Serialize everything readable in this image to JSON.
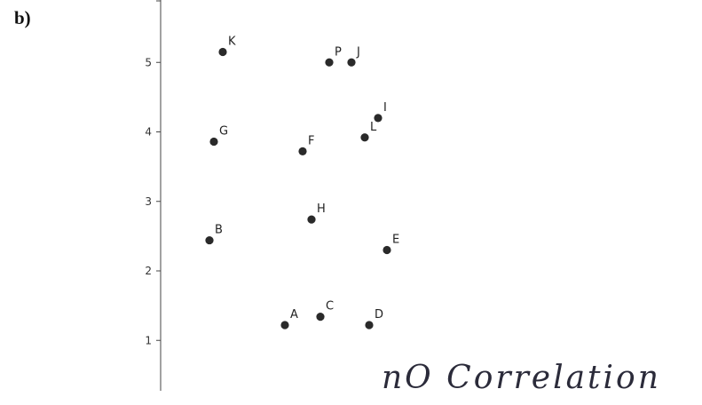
{
  "part_label": "b)",
  "annotation": "nO    Correlation",
  "chart_data": {
    "type": "scatter",
    "title": "",
    "xlabel": "",
    "ylabel": "",
    "ylim": [
      0.5,
      5.9
    ],
    "xlim": [
      0,
      10
    ],
    "yticks": [
      1,
      2,
      3,
      4,
      5
    ],
    "grid": false,
    "point_color": "#2a2a2a",
    "points": [
      {
        "label": "K",
        "x": 1.4,
        "y": 5.15
      },
      {
        "label": "P",
        "x": 3.8,
        "y": 5.0
      },
      {
        "label": "J",
        "x": 4.3,
        "y": 5.0
      },
      {
        "label": "I",
        "x": 4.9,
        "y": 4.2
      },
      {
        "label": "L",
        "x": 4.6,
        "y": 3.92
      },
      {
        "label": "G",
        "x": 1.2,
        "y": 3.86
      },
      {
        "label": "F",
        "x": 3.2,
        "y": 3.72
      },
      {
        "label": "H",
        "x": 3.4,
        "y": 2.74
      },
      {
        "label": "B",
        "x": 1.1,
        "y": 2.44
      },
      {
        "label": "E",
        "x": 5.1,
        "y": 2.3
      },
      {
        "label": "A",
        "x": 2.8,
        "y": 1.22
      },
      {
        "label": "C",
        "x": 3.6,
        "y": 1.34
      },
      {
        "label": "D",
        "x": 4.7,
        "y": 1.22
      }
    ]
  }
}
